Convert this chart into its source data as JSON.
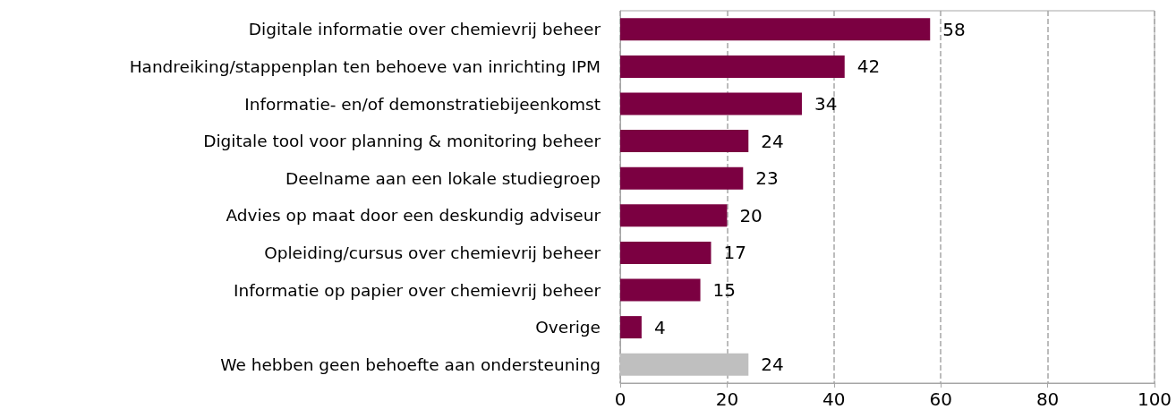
{
  "chart_data": {
    "type": "bar",
    "orientation": "horizontal",
    "categories": [
      "Digitale informatie over chemievrij beheer",
      "Handreiking/stappenplan ten behoeve van inrichting IPM",
      "Informatie- en/of demonstratiebijeenkomst",
      "Digitale tool voor planning & monitoring beheer",
      "Deelname aan een lokale studiegroep",
      "Advies op maat door een deskundig adviseur",
      "Opleiding/cursus over chemievrij beheer",
      "Informatie op papier over chemievrij beheer",
      "Overige",
      "We hebben geen behoefte aan ondersteuning"
    ],
    "values": [
      58,
      42,
      34,
      24,
      23,
      20,
      17,
      15,
      4,
      24
    ],
    "colors": [
      "#7b0041",
      "#7b0041",
      "#7b0041",
      "#7b0041",
      "#7b0041",
      "#7b0041",
      "#7b0041",
      "#7b0041",
      "#7b0041",
      "#bfbfbf"
    ],
    "xlim": [
      0,
      100
    ],
    "xticks": [
      0,
      20,
      40,
      60,
      80,
      100
    ],
    "grid": "x",
    "data_labels": true
  }
}
